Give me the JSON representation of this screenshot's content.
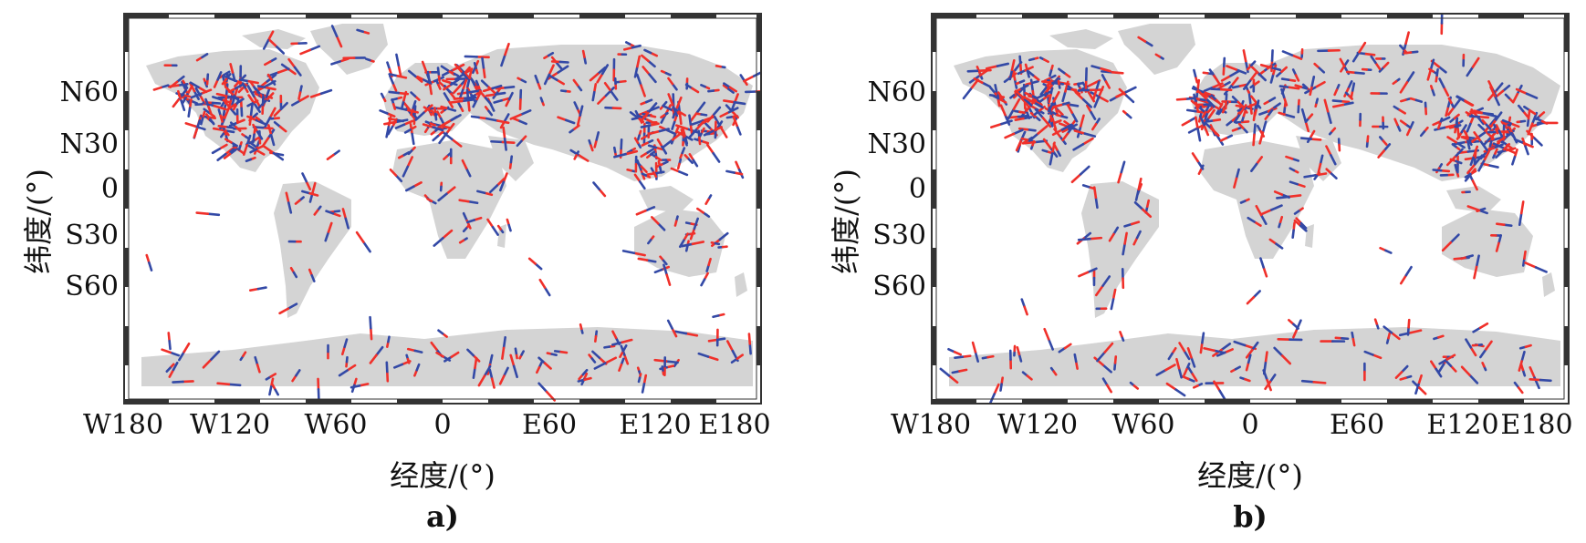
{
  "colors": {
    "land": "#d4d4d4",
    "frame": "#333333",
    "red_segment": "#f0302a",
    "blue_segment": "#3349a6"
  },
  "panels": [
    {
      "caption": "a)",
      "xlabel": "经度/(°)",
      "ylabel": "纬度/(°)",
      "xticks": [
        "W180",
        "W120",
        "W60",
        "0",
        "E60",
        "E120",
        "E180"
      ],
      "yticks": [
        "N60",
        "N30",
        "0",
        "S30",
        "S60"
      ],
      "seed": 7,
      "red_weight": 0.62
    },
    {
      "caption": "b)",
      "xlabel": "经度/(°)",
      "ylabel": "纬度/(°)",
      "xticks": [
        "W180",
        "W120",
        "W60",
        "0",
        "E60",
        "E120",
        "E180"
      ],
      "yticks": [
        "N60",
        "N30",
        "0",
        "S30",
        "S60"
      ],
      "seed": 19,
      "red_weight": 0.38
    }
  ]
}
